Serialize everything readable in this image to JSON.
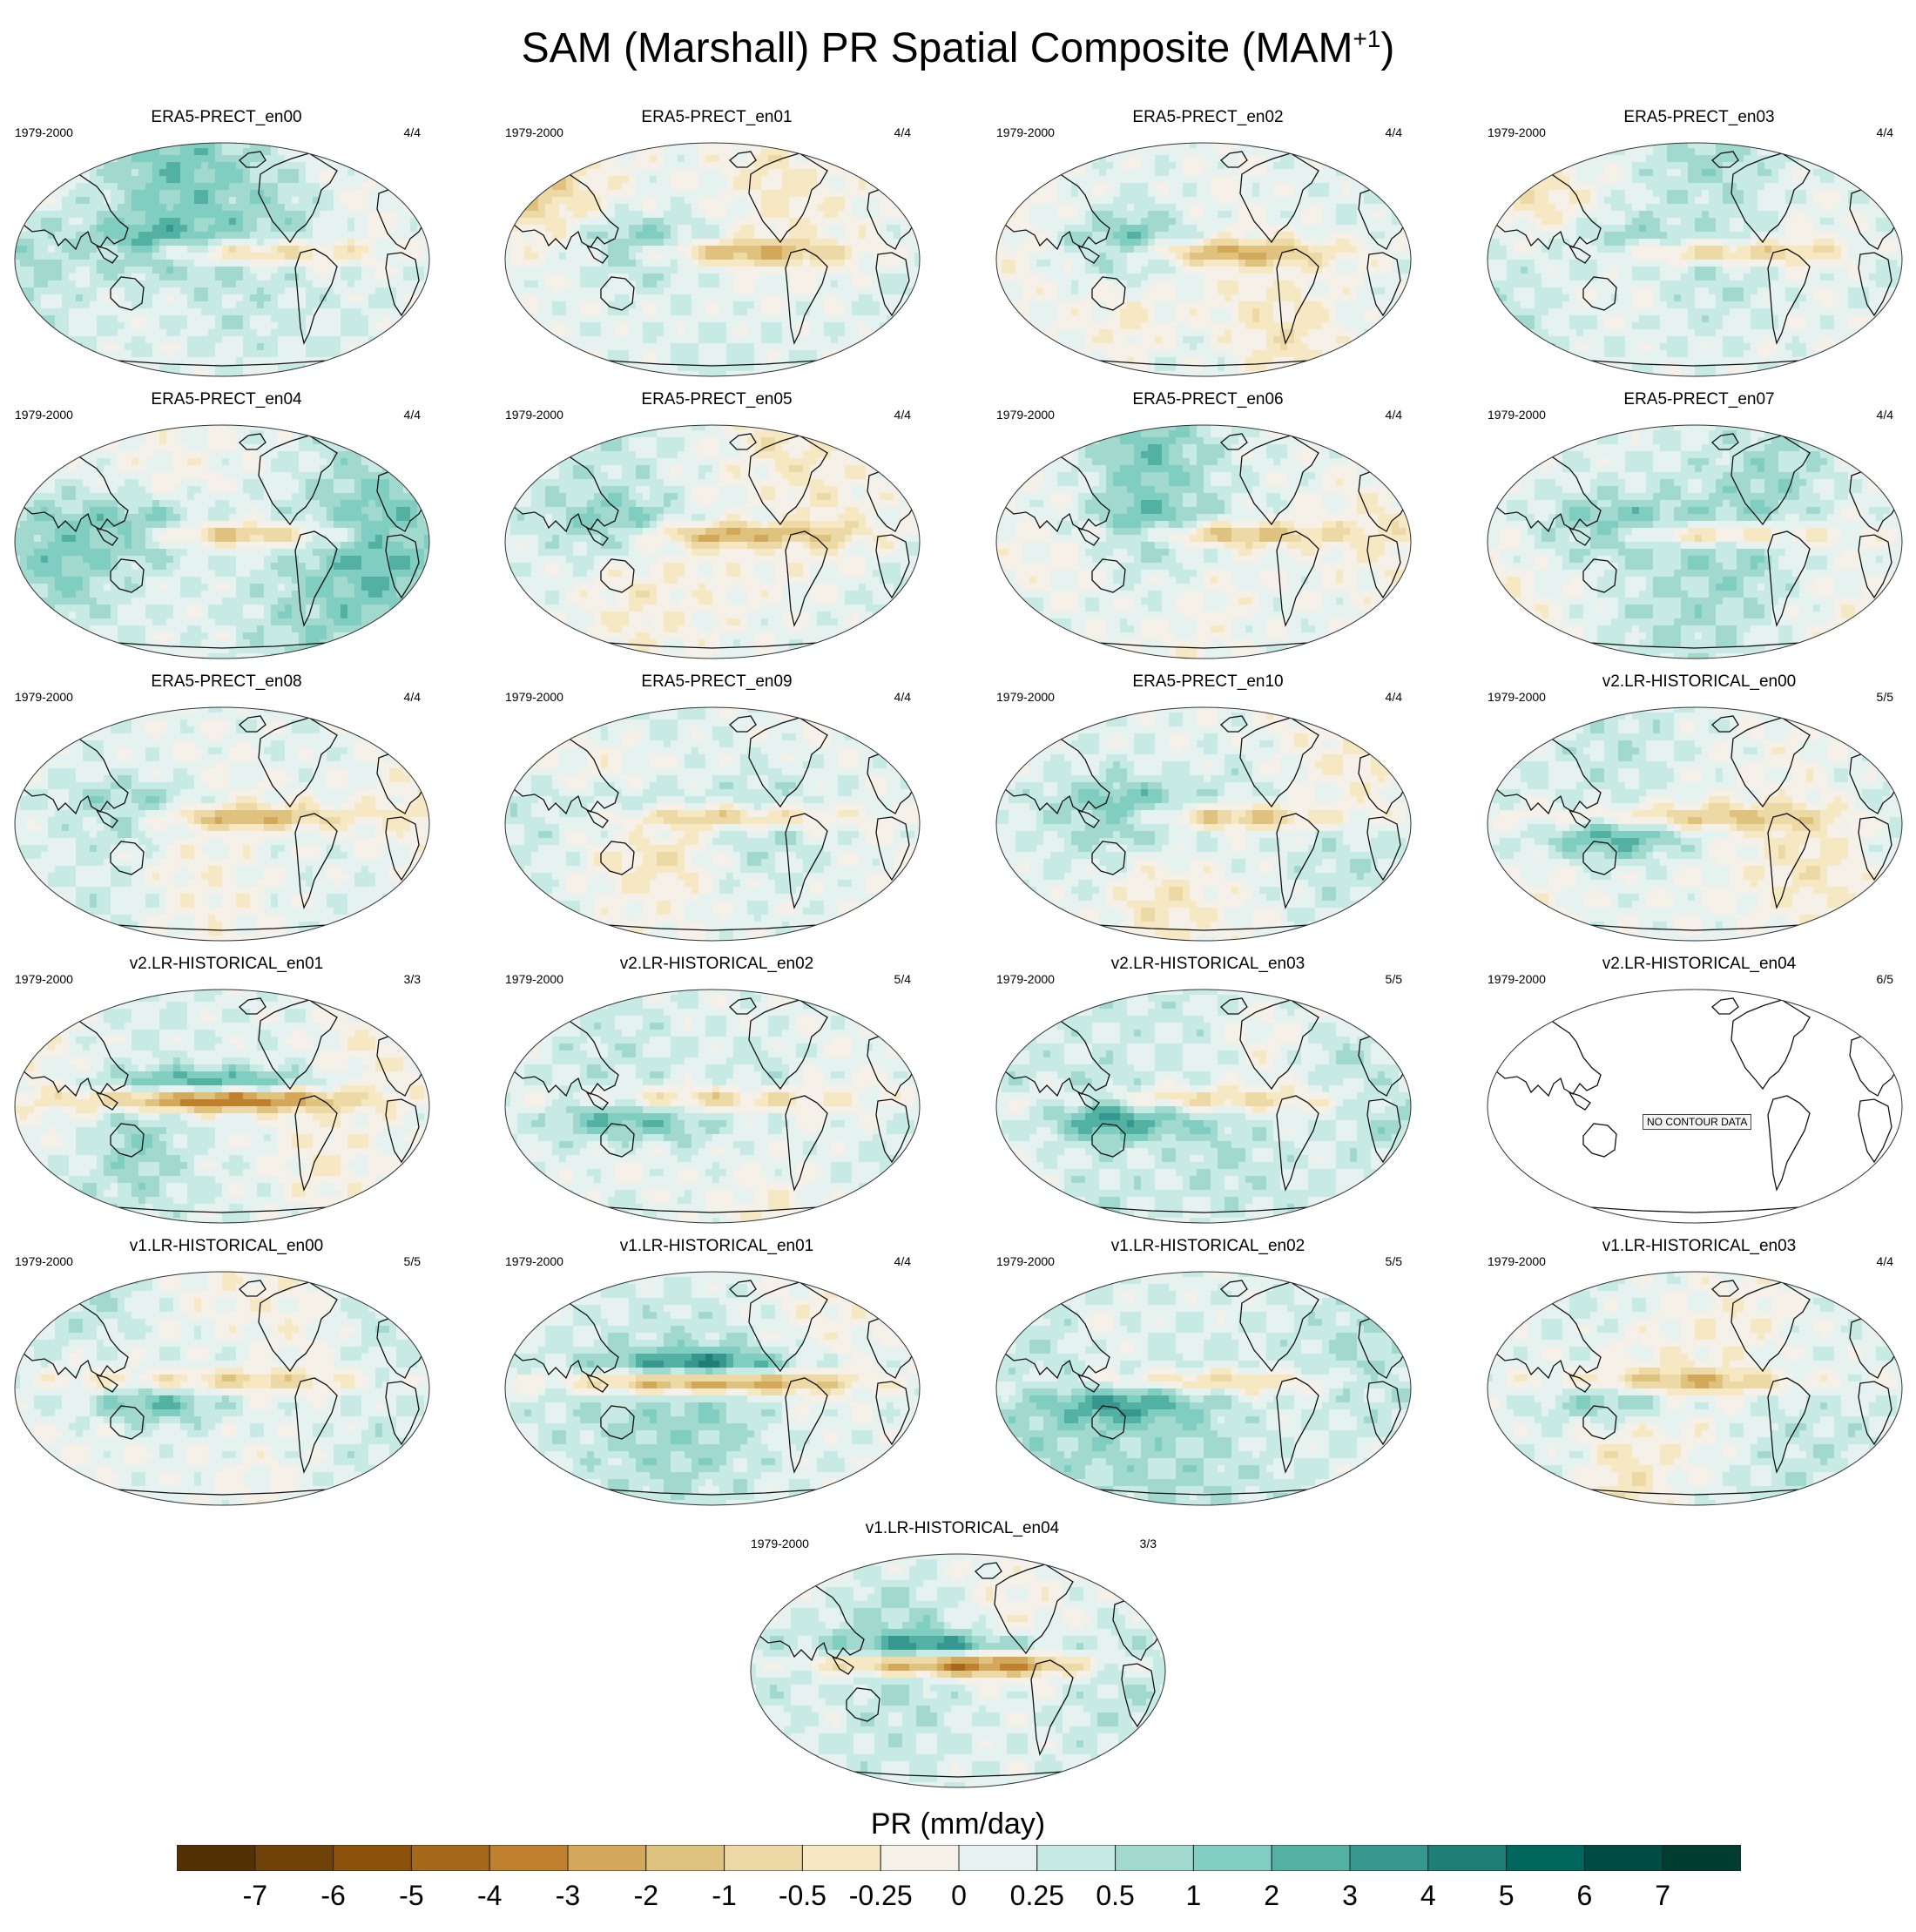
{
  "figure": {
    "title": "SAM (Marshall) PR Spatial Composite (MAM",
    "title_sup": "+1",
    "title_end": ")"
  },
  "chart_data": {
    "type": "heatmap",
    "title": "SAM (Marshall) PR Spatial Composite (MAM+1)",
    "colorbar_label": "PR (mm/day)",
    "levels": [
      "-7",
      "-6",
      "-5",
      "-4",
      "-3",
      "-2",
      "-1",
      "-0.5",
      "-0.25",
      "0",
      "0.25",
      "0.5",
      "1",
      "2",
      "3",
      "4",
      "5",
      "6",
      "7"
    ],
    "colors": [
      "#543005",
      "#6f420a",
      "#8c510a",
      "#a6691c",
      "#bf812d",
      "#d4a85a",
      "#dfc27d",
      "#ecd9a6",
      "#f6e8c3",
      "#f5f1e8",
      "#e6f2ef",
      "#c7eae5",
      "#a1d9cf",
      "#80cdc1",
      "#52b1a2",
      "#35978f",
      "#1d7f75",
      "#01665e",
      "#014c42",
      "#003c30"
    ],
    "panels": [
      {
        "title": "ERA5-PRECT_en00",
        "period": "1979-2000",
        "count": "4/4",
        "pattern": "era5",
        "seed": 1
      },
      {
        "title": "ERA5-PRECT_en01",
        "period": "1979-2000",
        "count": "4/4",
        "pattern": "era5",
        "seed": 2
      },
      {
        "title": "ERA5-PRECT_en02",
        "period": "1979-2000",
        "count": "4/4",
        "pattern": "era5",
        "seed": 3
      },
      {
        "title": "ERA5-PRECT_en03",
        "period": "1979-2000",
        "count": "4/4",
        "pattern": "era5",
        "seed": 4
      },
      {
        "title": "ERA5-PRECT_en04",
        "period": "1979-2000",
        "count": "4/4",
        "pattern": "era5",
        "seed": 5
      },
      {
        "title": "ERA5-PRECT_en05",
        "period": "1979-2000",
        "count": "4/4",
        "pattern": "era5",
        "seed": 6
      },
      {
        "title": "ERA5-PRECT_en06",
        "period": "1979-2000",
        "count": "4/4",
        "pattern": "era5",
        "seed": 7
      },
      {
        "title": "ERA5-PRECT_en07",
        "period": "1979-2000",
        "count": "4/4",
        "pattern": "era5",
        "seed": 8
      },
      {
        "title": "ERA5-PRECT_en08",
        "period": "1979-2000",
        "count": "4/4",
        "pattern": "era5",
        "seed": 9
      },
      {
        "title": "ERA5-PRECT_en09",
        "period": "1979-2000",
        "count": "4/4",
        "pattern": "era5",
        "seed": 10
      },
      {
        "title": "ERA5-PRECT_en10",
        "period": "1979-2000",
        "count": "4/4",
        "pattern": "era5",
        "seed": 11
      },
      {
        "title": "v2.LR-HISTORICAL_en00",
        "period": "1979-2000",
        "count": "5/5",
        "pattern": "model",
        "seed": 12
      },
      {
        "title": "v2.LR-HISTORICAL_en01",
        "period": "1979-2000",
        "count": "3/3",
        "pattern": "strong",
        "seed": 13
      },
      {
        "title": "v2.LR-HISTORICAL_en02",
        "period": "1979-2000",
        "count": "5/4",
        "pattern": "model",
        "seed": 14
      },
      {
        "title": "v2.LR-HISTORICAL_en03",
        "period": "1979-2000",
        "count": "5/5",
        "pattern": "model",
        "seed": 15
      },
      {
        "title": "v2.LR-HISTORICAL_en04",
        "period": "1979-2000",
        "count": "6/5",
        "pattern": "none",
        "seed": 16,
        "note": "NO CONTOUR DATA"
      },
      {
        "title": "v1.LR-HISTORICAL_en00",
        "period": "1979-2000",
        "count": "5/5",
        "pattern": "model",
        "seed": 17
      },
      {
        "title": "v1.LR-HISTORICAL_en01",
        "period": "1979-2000",
        "count": "4/4",
        "pattern": "strong",
        "seed": 18
      },
      {
        "title": "v1.LR-HISTORICAL_en02",
        "period": "1979-2000",
        "count": "5/5",
        "pattern": "model",
        "seed": 19
      },
      {
        "title": "v1.LR-HISTORICAL_en03",
        "period": "1979-2000",
        "count": "4/4",
        "pattern": "model",
        "seed": 20
      },
      {
        "title": "v1.LR-HISTORICAL_en04",
        "period": "1979-2000",
        "count": "3/3",
        "pattern": "strong",
        "seed": 21
      }
    ]
  }
}
